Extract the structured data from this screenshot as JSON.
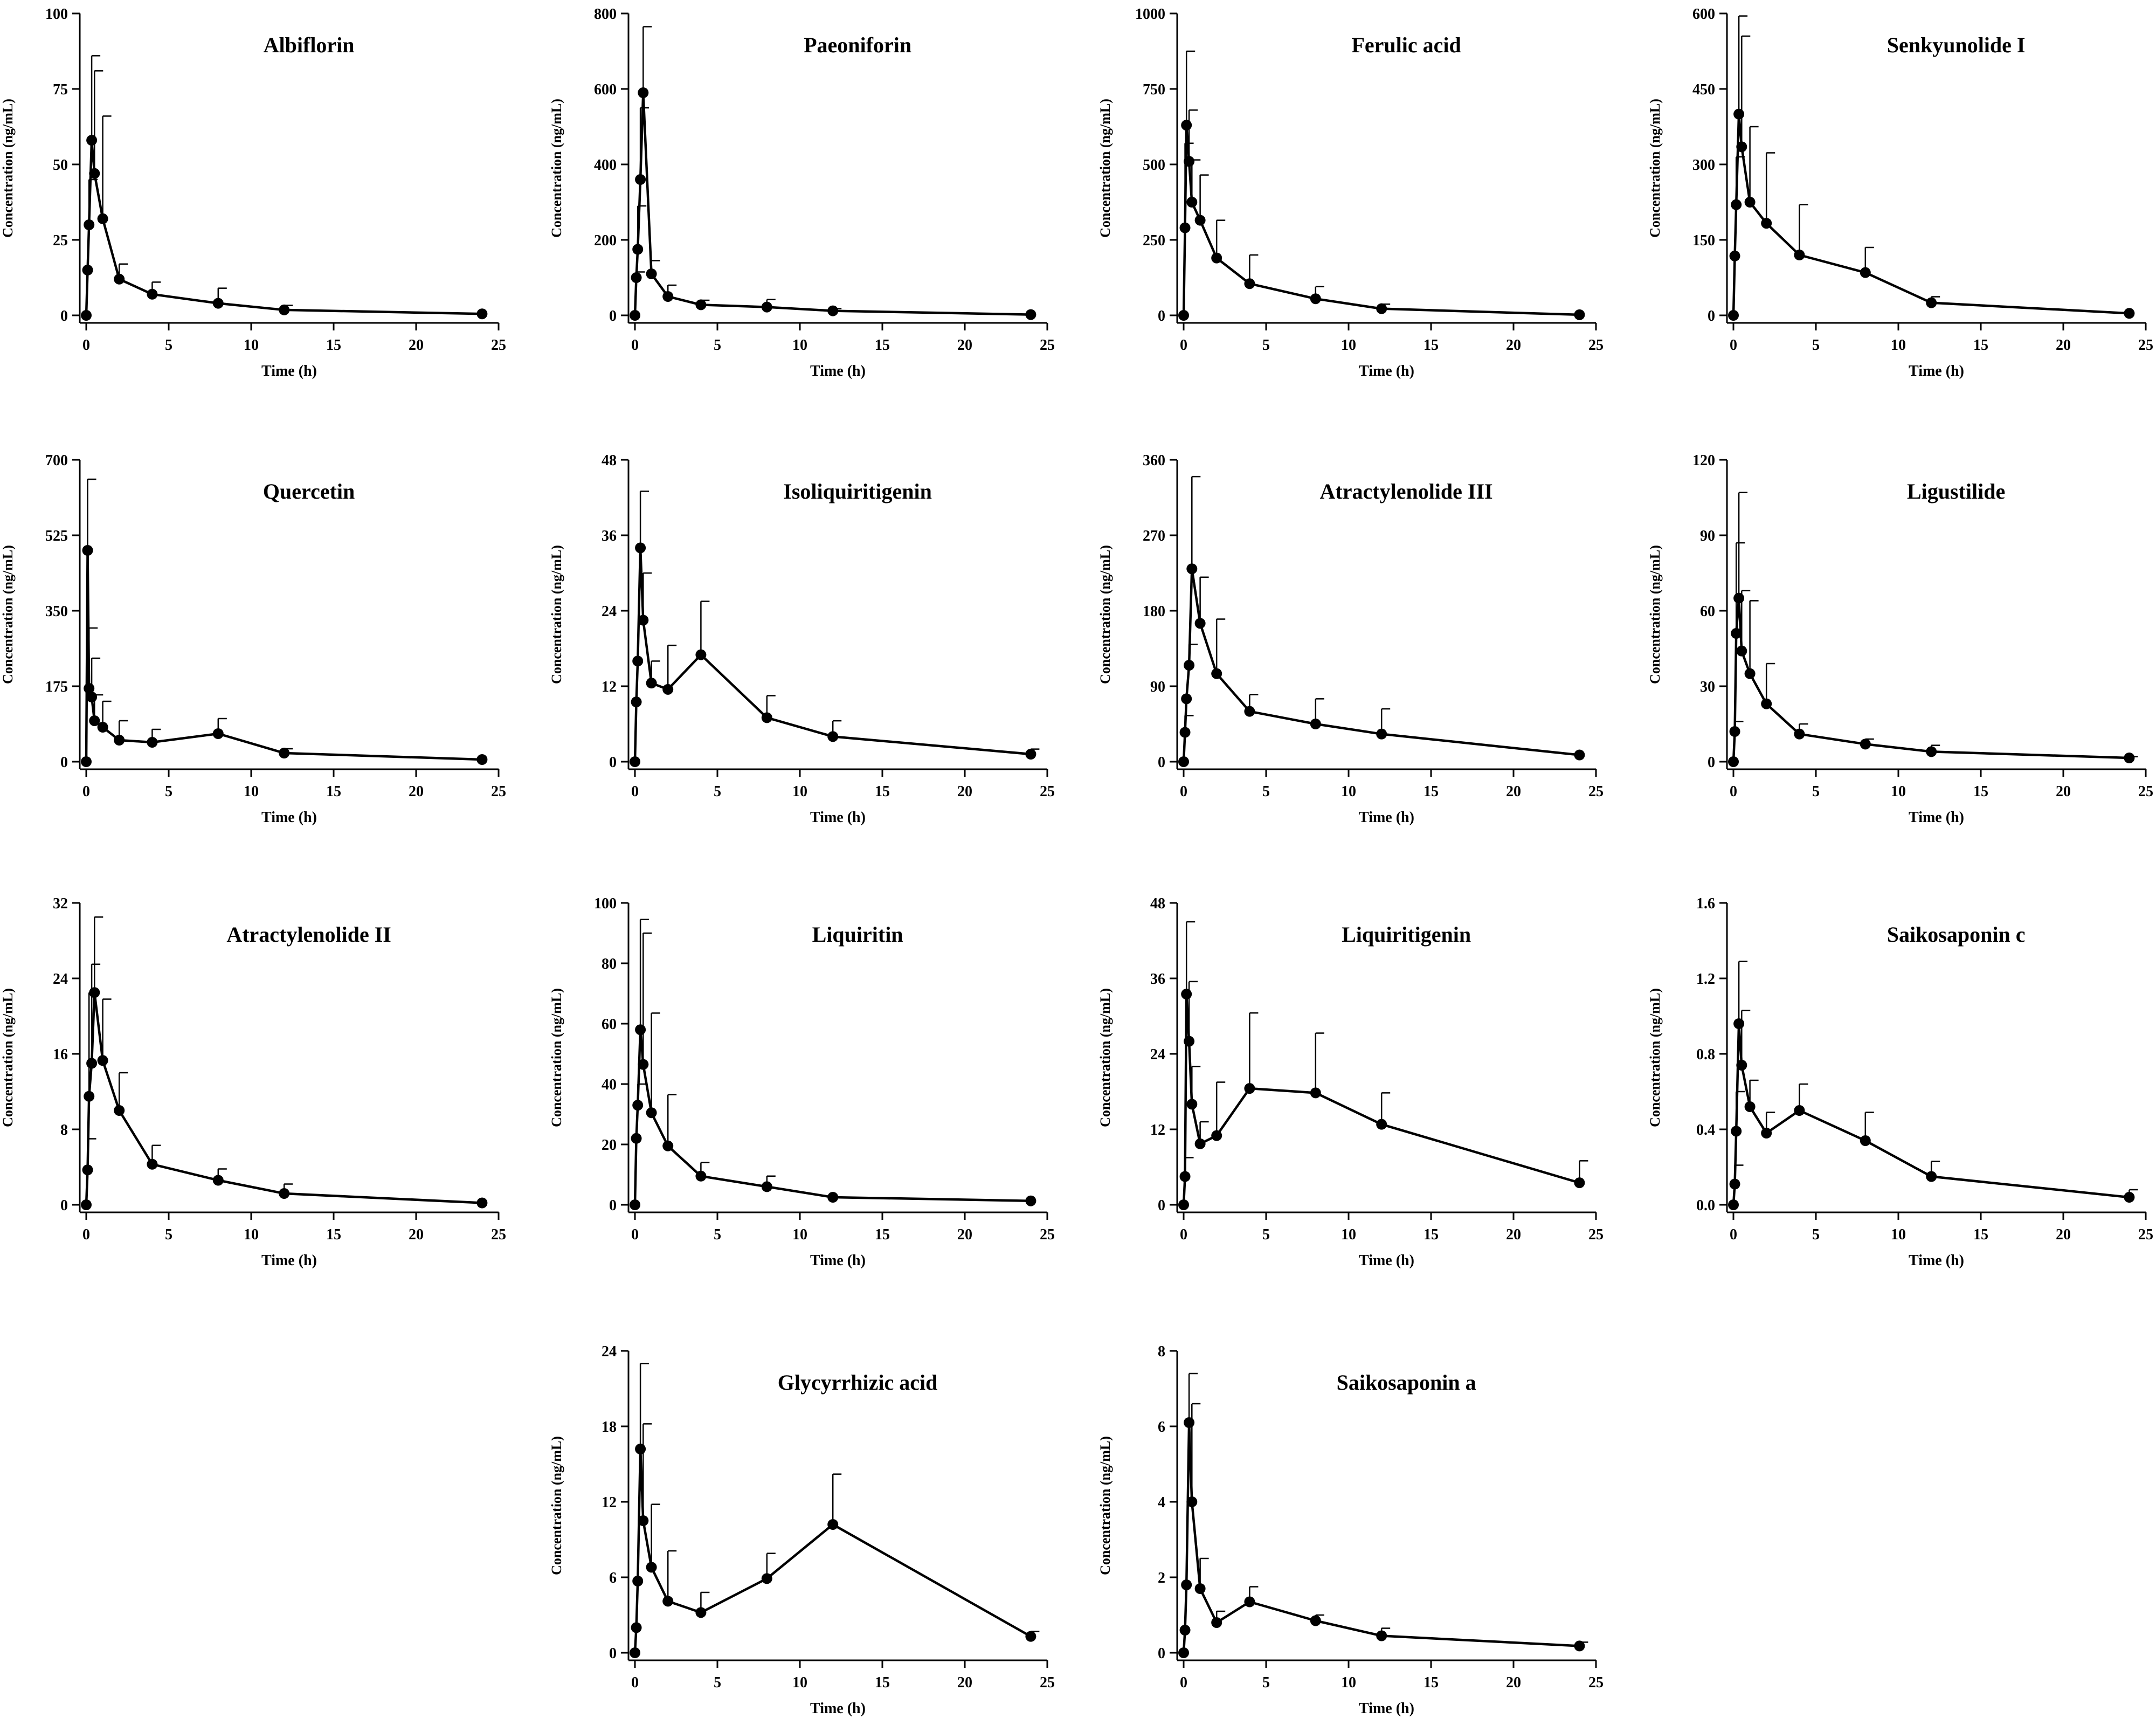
{
  "figure": {
    "x_label": "Time (h)",
    "y_label": "Concentration (ng/mL)",
    "x_ticks": [
      0,
      5,
      10,
      15,
      20,
      25
    ],
    "line_color": "#000000",
    "marker": "filled-circle"
  },
  "chart_data": [
    {
      "type": "line",
      "title": "Albiflorin",
      "xlabel": "Time (h)",
      "ylabel": "Concentration (ng/mL)",
      "xlim": [
        0,
        25
      ],
      "ylim": [
        0,
        100
      ],
      "yticks": [
        0,
        25,
        50,
        75,
        100
      ],
      "series": [
        {
          "name": "Albiflorin",
          "x": [
            0,
            0.083,
            0.17,
            0.33,
            0.5,
            1,
            2,
            4,
            8,
            12,
            24
          ],
          "values": [
            0,
            15,
            30,
            58,
            47,
            32,
            12,
            7,
            4,
            1.8,
            0.5
          ],
          "error": [
            0,
            0,
            15,
            28,
            34,
            34,
            5,
            4,
            5,
            1.5,
            0
          ]
        }
      ]
    },
    {
      "type": "line",
      "title": "Paeoniforin",
      "xlabel": "Time (h)",
      "ylabel": "Concentration (ng/mL)",
      "xlim": [
        0,
        25
      ],
      "ylim": [
        0,
        800
      ],
      "yticks": [
        0,
        200,
        400,
        600,
        800
      ],
      "series": [
        {
          "name": "Paeoniforin",
          "x": [
            0,
            0.083,
            0.17,
            0.33,
            0.5,
            1,
            2,
            4,
            8,
            12,
            24
          ],
          "values": [
            0,
            100,
            175,
            360,
            590,
            110,
            50,
            28,
            22,
            12,
            2
          ],
          "error": [
            0,
            15,
            115,
            190,
            175,
            35,
            30,
            12,
            20,
            6,
            0
          ]
        }
      ]
    },
    {
      "type": "line",
      "title": "Ferulic acid",
      "xlabel": "Time (h)",
      "ylabel": "Concentration (ng/mL)",
      "xlim": [
        0,
        25
      ],
      "ylim": [
        0,
        1000
      ],
      "yticks": [
        0,
        250,
        500,
        750,
        1000
      ],
      "series": [
        {
          "name": "Ferulic acid",
          "x": [
            0,
            0.083,
            0.17,
            0.33,
            0.5,
            1,
            2,
            4,
            8,
            12,
            24
          ],
          "values": [
            0,
            290,
            630,
            510,
            375,
            315,
            190,
            105,
            55,
            22,
            2
          ],
          "error": [
            0,
            280,
            245,
            170,
            140,
            150,
            125,
            95,
            40,
            15,
            0
          ]
        }
      ]
    },
    {
      "type": "line",
      "title": "Senkyunolide I",
      "xlabel": "Time (h)",
      "ylabel": "Concentration (ng/mL)",
      "xlim": [
        0,
        25
      ],
      "ylim": [
        0,
        600
      ],
      "yticks": [
        0,
        150,
        300,
        450,
        600
      ],
      "series": [
        {
          "name": "Senkyunolide I",
          "x": [
            0,
            0.083,
            0.17,
            0.33,
            0.5,
            1,
            2,
            4,
            8,
            12,
            24
          ],
          "values": [
            0,
            118,
            220,
            400,
            335,
            225,
            183,
            120,
            85,
            25,
            4
          ],
          "error": [
            0,
            0,
            95,
            195,
            220,
            150,
            140,
            100,
            50,
            12,
            0
          ]
        }
      ]
    },
    {
      "type": "line",
      "title": "Quercetin",
      "xlabel": "Time (h)",
      "ylabel": "Concentration (ng/mL)",
      "xlim": [
        0,
        25
      ],
      "ylim": [
        0,
        700
      ],
      "yticks": [
        0,
        175,
        350,
        525,
        700
      ],
      "series": [
        {
          "name": "Quercetin",
          "x": [
            0,
            0.083,
            0.17,
            0.33,
            0.5,
            1,
            2,
            4,
            8,
            12,
            24
          ],
          "values": [
            0,
            490,
            170,
            150,
            95,
            80,
            50,
            45,
            65,
            20,
            5
          ],
          "error": [
            0,
            165,
            140,
            90,
            60,
            60,
            45,
            30,
            35,
            10,
            0
          ]
        }
      ]
    },
    {
      "type": "line",
      "title": "Isoliquiritigenin",
      "xlabel": "Time (h)",
      "ylabel": "Concentration (ng/mL)",
      "xlim": [
        0,
        25
      ],
      "ylim": [
        0,
        48
      ],
      "yticks": [
        0,
        12,
        24,
        36,
        48
      ],
      "series": [
        {
          "name": "Isoliquiritigenin",
          "x": [
            0,
            0.083,
            0.17,
            0.33,
            0.5,
            1,
            2,
            4,
            8,
            12,
            24
          ],
          "values": [
            0,
            9.5,
            16,
            34,
            22.5,
            12.5,
            11.5,
            17,
            7,
            4,
            1.2
          ],
          "error": [
            0,
            0,
            0,
            9,
            7.5,
            3.5,
            7,
            8.5,
            3.5,
            2.5,
            0.8
          ]
        }
      ]
    },
    {
      "type": "line",
      "title": "Atractylenolide III",
      "xlabel": "Time (h)",
      "ylabel": "Concentration (ng/mL)",
      "xlim": [
        0,
        25
      ],
      "ylim": [
        0,
        360
      ],
      "yticks": [
        0,
        90,
        180,
        270,
        360
      ],
      "series": [
        {
          "name": "Atractylenolide III",
          "x": [
            0,
            0.083,
            0.17,
            0.33,
            0.5,
            1,
            2,
            4,
            8,
            12,
            24
          ],
          "values": [
            0,
            35,
            75,
            115,
            230,
            165,
            105,
            60,
            45,
            33,
            8
          ],
          "error": [
            0,
            20,
            0,
            25,
            110,
            55,
            65,
            20,
            30,
            30,
            0
          ]
        }
      ]
    },
    {
      "type": "line",
      "title": "Ligustilide",
      "xlabel": "Time (h)",
      "ylabel": "Concentration (ng/mL)",
      "xlim": [
        0,
        25
      ],
      "ylim": [
        0,
        120
      ],
      "yticks": [
        0,
        30,
        60,
        90,
        120
      ],
      "series": [
        {
          "name": "Ligustilide",
          "x": [
            0,
            0.083,
            0.17,
            0.33,
            0.5,
            1,
            2,
            4,
            8,
            12,
            24
          ],
          "values": [
            0,
            12,
            51,
            65,
            44,
            35,
            23,
            11,
            7,
            4,
            1.5
          ],
          "error": [
            0,
            4,
            36,
            42,
            24,
            29,
            16,
            4,
            2,
            2.5,
            0.5
          ]
        }
      ]
    },
    {
      "type": "line",
      "title": "Atractylenolide II",
      "xlabel": "Time (h)",
      "ylabel": "Concentration (ng/mL)",
      "xlim": [
        0,
        25
      ],
      "ylim": [
        0,
        32
      ],
      "yticks": [
        0,
        8,
        16,
        24,
        32
      ],
      "series": [
        {
          "name": "Atractylenolide II",
          "x": [
            0,
            0.083,
            0.17,
            0.33,
            0.5,
            1,
            2,
            4,
            8,
            12,
            24
          ],
          "values": [
            0,
            3.7,
            11.5,
            15,
            22.5,
            15.3,
            10,
            4.3,
            2.6,
            1.2,
            0.2
          ],
          "error": [
            0,
            3.3,
            11,
            10.5,
            8,
            6.5,
            4,
            2,
            1.2,
            1,
            0
          ]
        }
      ]
    },
    {
      "type": "line",
      "title": "Liquiritin",
      "xlabel": "Time (h)",
      "ylabel": "Concentration (ng/mL)",
      "xlim": [
        0,
        25
      ],
      "ylim": [
        0,
        100
      ],
      "yticks": [
        0,
        20,
        40,
        60,
        80,
        100
      ],
      "series": [
        {
          "name": "Liquiritin",
          "x": [
            0,
            0.083,
            0.17,
            0.33,
            0.5,
            1,
            2,
            4,
            8,
            12,
            24
          ],
          "values": [
            0,
            22,
            33,
            58,
            46.5,
            30.5,
            19.5,
            9.5,
            6,
            2.5,
            1.3
          ],
          "error": [
            0,
            0,
            7,
            36.5,
            43.5,
            33,
            17,
            4.5,
            3.5,
            0,
            0
          ]
        }
      ]
    },
    {
      "type": "line",
      "title": "Liquiritigenin",
      "xlabel": "Time (h)",
      "ylabel": "Concentration (ng/mL)",
      "xlim": [
        0,
        25
      ],
      "ylim": [
        0,
        48
      ],
      "yticks": [
        0,
        12,
        24,
        36,
        48
      ],
      "series": [
        {
          "name": "Liquiritigenin",
          "x": [
            0,
            0.083,
            0.17,
            0.33,
            0.5,
            1,
            2,
            4,
            8,
            12,
            24
          ],
          "values": [
            0,
            4.5,
            33.5,
            26,
            16,
            9.7,
            11,
            18.5,
            17.8,
            12.8,
            3.5
          ],
          "error": [
            0,
            3,
            11.5,
            9.5,
            6,
            3.5,
            8.5,
            12,
            9.5,
            5,
            3.5
          ]
        }
      ]
    },
    {
      "type": "line",
      "title": "Saikosaponin c",
      "xlabel": "Time (h)",
      "ylabel": "Concentration (ng/mL)",
      "xlim": [
        0,
        25
      ],
      "ylim": [
        0,
        1.6
      ],
      "yticks": [
        "0.0",
        "0.4",
        "0.8",
        "1.2",
        "1.6"
      ],
      "series": [
        {
          "name": "Saikosaponin c",
          "x": [
            0,
            0.083,
            0.17,
            0.33,
            0.5,
            1,
            2,
            4,
            8,
            12,
            24
          ],
          "values": [
            0,
            0.11,
            0.39,
            0.96,
            0.74,
            0.52,
            0.38,
            0.5,
            0.34,
            0.15,
            0.04
          ],
          "error": [
            0,
            0.1,
            0.21,
            0.33,
            0.29,
            0.14,
            0.11,
            0.14,
            0.15,
            0.08,
            0.04
          ]
        }
      ]
    },
    {
      "type": "line",
      "title": "Glycyrrhizic acid",
      "xlabel": "Time (h)",
      "ylabel": "Concentration (ng/mL)",
      "xlim": [
        0,
        25
      ],
      "ylim": [
        0,
        24
      ],
      "yticks": [
        0,
        6,
        12,
        18,
        24
      ],
      "series": [
        {
          "name": "Glycyrrhizic acid",
          "x": [
            0,
            0.083,
            0.17,
            0.33,
            0.5,
            1,
            2,
            4,
            8,
            12,
            24
          ],
          "values": [
            0,
            2,
            5.7,
            16.2,
            10.5,
            6.8,
            4.1,
            3.2,
            5.9,
            10.2,
            1.3
          ],
          "error": [
            0,
            0,
            0,
            6.8,
            7.7,
            5,
            4,
            1.6,
            2,
            4,
            0.4
          ]
        }
      ]
    },
    {
      "type": "line",
      "title": "Saikosaponin a",
      "xlabel": "Time (h)",
      "ylabel": "Concentration (ng/mL)",
      "xlim": [
        0,
        25
      ],
      "ylim": [
        0,
        8
      ],
      "yticks": [
        0,
        2,
        4,
        6,
        8
      ],
      "series": [
        {
          "name": "Saikosaponin a",
          "x": [
            0,
            0.083,
            0.17,
            0.33,
            0.5,
            1,
            2,
            4,
            8,
            12,
            24
          ],
          "values": [
            0,
            0.6,
            1.8,
            6.1,
            4,
            1.7,
            0.8,
            1.35,
            0.85,
            0.45,
            0.18
          ],
          "error": [
            0,
            0,
            0,
            1.3,
            2.6,
            0.8,
            0.3,
            0.4,
            0.15,
            0.2,
            0.1
          ]
        }
      ]
    }
  ]
}
